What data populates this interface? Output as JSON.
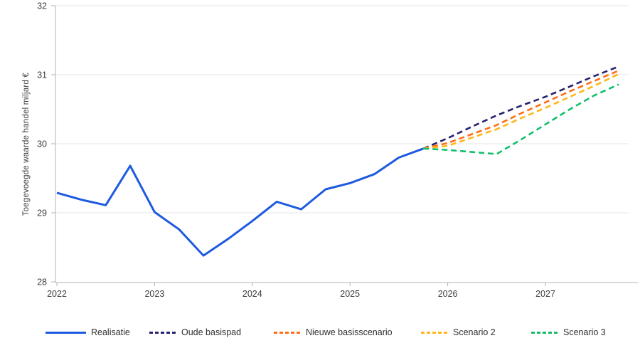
{
  "chart": {
    "y_axis_title": "Toegevoegde waarde handel miljard €",
    "colors": {
      "realisatie": "#1E5AE0",
      "oude_basispad": "#26226E",
      "nieuwe_basisscenario": "#FF6D15",
      "scenario_2": "#FEB71A",
      "scenario_3": "#12BF6B",
      "grid": "#E6E6E6",
      "axis": "#B3B3B3",
      "text": "#3C3C3C"
    }
  },
  "chart_data": {
    "type": "line",
    "title": "",
    "xlabel": "",
    "ylabel": "Toegevoegde waarde handel miljard €",
    "xlim": [
      2022,
      2027.95
    ],
    "ylim": [
      28,
      32
    ],
    "grid": "horizontal",
    "legend_position": "bottom",
    "x_ticks": [
      "2022",
      "2023",
      "2024",
      "2025",
      "2026",
      "2027"
    ],
    "y_ticks": [
      28,
      29,
      30,
      31,
      32
    ],
    "series": [
      {
        "name": "Realisatie",
        "style": "solid",
        "color": "#1E5AE0",
        "x": [
          2022.0,
          2022.25,
          2022.5,
          2022.75,
          2023.0,
          2023.25,
          2023.5,
          2023.75,
          2024.0,
          2024.25,
          2024.5,
          2024.75,
          2025.0,
          2025.25,
          2025.5,
          2025.75
        ],
        "y": [
          29.29,
          29.19,
          29.11,
          29.68,
          29.01,
          28.76,
          28.38,
          28.62,
          28.88,
          29.16,
          29.05,
          29.34,
          29.43,
          29.56,
          29.8,
          29.93
        ]
      },
      {
        "name": "Oude basispad",
        "style": "dashed",
        "color": "#26226E",
        "x": [
          2025.75,
          2026.0,
          2026.25,
          2026.5,
          2026.75,
          2027.0,
          2027.25,
          2027.5,
          2027.75
        ],
        "y": [
          29.93,
          30.08,
          30.25,
          30.41,
          30.55,
          30.68,
          30.83,
          30.98,
          31.12
        ]
      },
      {
        "name": "Nieuwe basisscenario",
        "style": "dashed",
        "color": "#FF6D15",
        "x": [
          2025.75,
          2026.0,
          2026.25,
          2026.5,
          2026.75,
          2027.0,
          2027.25,
          2027.5,
          2027.75
        ],
        "y": [
          29.93,
          30.01,
          30.14,
          30.27,
          30.44,
          30.6,
          30.76,
          30.91,
          31.06
        ]
      },
      {
        "name": "Scenario 2",
        "style": "dashed",
        "color": "#FEB71A",
        "x": [
          2025.75,
          2026.0,
          2026.25,
          2026.5,
          2026.75,
          2027.0,
          2027.25,
          2027.5,
          2027.75
        ],
        "y": [
          29.93,
          29.97,
          30.09,
          30.21,
          30.37,
          30.52,
          30.68,
          30.84,
          31.01
        ]
      },
      {
        "name": "Scenario 3",
        "style": "dashed",
        "color": "#12BF6B",
        "x": [
          2025.75,
          2026.0,
          2026.25,
          2026.5,
          2026.75,
          2027.0,
          2027.25,
          2027.5,
          2027.75
        ],
        "y": [
          29.93,
          29.91,
          29.88,
          29.85,
          30.06,
          30.28,
          30.5,
          30.7,
          30.86
        ]
      }
    ]
  }
}
